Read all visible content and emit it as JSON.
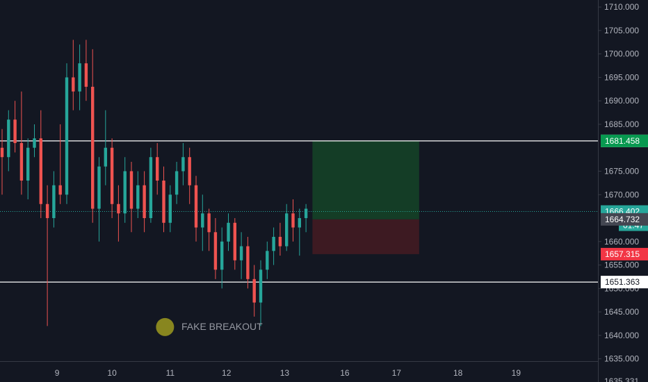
{
  "colors": {
    "background": "#131722",
    "up": "#26a69a",
    "down": "#ef5350",
    "axis_text": "#b2b5be",
    "axis_line": "#363a45",
    "hline": "#ffffff",
    "profit_zone": "#143d26",
    "loss_zone": "#3d1a22",
    "current_price": "#26a69a",
    "target_tag": "#089950",
    "stop_tag": "#f23645",
    "entry_tag": "#434651",
    "marker": "#9e9a1e"
  },
  "chart_data": {
    "type": "candlestick",
    "title": "",
    "xlabel": "",
    "ylabel": "",
    "ylim": [
      1634.5,
      1711.5
    ],
    "grid": false,
    "y_ticks": [
      "1710.000",
      "1705.000",
      "1700.000",
      "1695.000",
      "1690.000",
      "1685.000",
      "1675.000",
      "1670.000",
      "1660.000",
      "1655.000",
      "1650.000",
      "1645.000",
      "1640.000",
      "1635.000"
    ],
    "y_tick_values": [
      1710,
      1705,
      1700,
      1695,
      1690,
      1685,
      1675,
      1670,
      1660,
      1655,
      1650,
      1645,
      1640,
      1635
    ],
    "x_ticks": [
      "9",
      "10",
      "11",
      "12",
      "13",
      "16",
      "17",
      "18",
      "19"
    ],
    "x_tick_index": [
      8.5,
      17,
      26,
      34.7,
      43.7,
      53,
      61,
      70.5,
      79.5
    ],
    "x_range": [
      0,
      82
    ],
    "candles": [
      [
        1680,
        1684,
        1670,
        1678
      ],
      [
        1678,
        1688,
        1675,
        1686
      ],
      [
        1686,
        1690,
        1679,
        1681
      ],
      [
        1681,
        1692,
        1670,
        1673
      ],
      [
        1673,
        1682,
        1669,
        1680
      ],
      [
        1680,
        1685,
        1678,
        1682
      ],
      [
        1682,
        1688,
        1665,
        1668
      ],
      [
        1668,
        1672,
        1642,
        1665
      ],
      [
        1665,
        1675,
        1663,
        1672
      ],
      [
        1672,
        1685,
        1668,
        1670
      ],
      [
        1670,
        1698,
        1668,
        1695
      ],
      [
        1695,
        1703,
        1688,
        1692
      ],
      [
        1692,
        1702,
        1688,
        1698
      ],
      [
        1698,
        1703,
        1690,
        1693
      ],
      [
        1693,
        1701,
        1664,
        1667
      ],
      [
        1667,
        1678,
        1660,
        1676
      ],
      [
        1676,
        1688,
        1672,
        1680
      ],
      [
        1680,
        1682,
        1665,
        1668
      ],
      [
        1668,
        1672,
        1660,
        1666
      ],
      [
        1666,
        1678,
        1664,
        1675
      ],
      [
        1675,
        1677,
        1662,
        1667
      ],
      [
        1667,
        1675,
        1665,
        1672
      ],
      [
        1672,
        1675,
        1662,
        1665
      ],
      [
        1665,
        1680,
        1664,
        1678
      ],
      [
        1678,
        1681,
        1670,
        1673
      ],
      [
        1673,
        1676,
        1662,
        1664
      ],
      [
        1664,
        1672,
        1662,
        1670
      ],
      [
        1670,
        1677,
        1668,
        1675
      ],
      [
        1675,
        1681,
        1672,
        1678
      ],
      [
        1678,
        1680,
        1668,
        1672
      ],
      [
        1672,
        1674,
        1660,
        1663
      ],
      [
        1663,
        1670,
        1658,
        1666
      ],
      [
        1666,
        1667,
        1658,
        1662
      ],
      [
        1662,
        1665,
        1652,
        1654
      ],
      [
        1654,
        1663,
        1650,
        1660
      ],
      [
        1660,
        1666,
        1658,
        1664
      ],
      [
        1664,
        1665,
        1654,
        1656
      ],
      [
        1656,
        1662,
        1652,
        1659
      ],
      [
        1659,
        1661,
        1650,
        1652
      ],
      [
        1652,
        1655,
        1644,
        1647
      ],
      [
        1647,
        1656,
        1642,
        1654
      ],
      [
        1654,
        1660,
        1652,
        1658
      ],
      [
        1658,
        1663,
        1655,
        1661
      ],
      [
        1661,
        1664,
        1657,
        1659
      ],
      [
        1659,
        1668,
        1658,
        1666
      ],
      [
        1666,
        1669,
        1660,
        1663
      ],
      [
        1663,
        1667,
        1657,
        1665
      ],
      [
        1665,
        1668,
        1662,
        1667
      ]
    ],
    "horizontal_lines": [
      1681.457,
      1651.363
    ],
    "current_price": 1666.402,
    "position": {
      "target": 1681.458,
      "entry": 1664.732,
      "stop": 1657.315,
      "start_index": 48,
      "end_index": 64.5
    },
    "annotations": [
      {
        "text": "FAKE BREAKOUT",
        "x_index": 39.5,
        "y": 1644
      }
    ],
    "price_tags": {
      "hline_top": "1681.457",
      "target": "1681.458",
      "current": "1666.402",
      "countdown": "01:47",
      "entry": "1664.732",
      "stop": "1657.315",
      "hline_bottom": "1651.363",
      "partial_top": "166",
      "partial_bottom": "1635.331"
    }
  }
}
